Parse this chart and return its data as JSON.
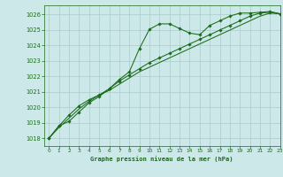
{
  "title": "Graphe pression niveau de la mer (hPa)",
  "bg_color": "#cce8e8",
  "grid_color": "#aacccc",
  "line_color": "#1a6b1a",
  "xlim": [
    -0.5,
    23
  ],
  "ylim": [
    1017.5,
    1026.6
  ],
  "yticks": [
    1018,
    1019,
    1020,
    1021,
    1022,
    1023,
    1024,
    1025,
    1026
  ],
  "xticks": [
    0,
    1,
    2,
    3,
    4,
    5,
    6,
    7,
    8,
    9,
    10,
    11,
    12,
    13,
    14,
    15,
    16,
    17,
    18,
    19,
    20,
    21,
    22,
    23
  ],
  "line1_x": [
    0,
    1,
    2,
    3,
    4,
    5,
    6,
    7,
    8,
    9,
    10,
    11,
    12,
    13,
    14,
    15,
    16,
    17,
    18,
    19,
    20,
    21,
    22,
    23
  ],
  "line1_y": [
    1018.0,
    1018.8,
    1019.1,
    1019.7,
    1020.3,
    1020.7,
    1021.2,
    1021.8,
    1022.3,
    1023.8,
    1025.05,
    1025.4,
    1025.4,
    1025.1,
    1024.8,
    1024.7,
    1025.3,
    1025.6,
    1025.9,
    1026.1,
    1026.1,
    1026.15,
    1026.2,
    1026.05
  ],
  "line2_x": [
    0,
    1,
    2,
    3,
    4,
    5,
    6,
    7,
    8,
    9,
    10,
    11,
    12,
    13,
    14,
    15,
    16,
    17,
    18,
    19,
    20,
    21,
    22,
    23
  ],
  "line2_y": [
    1018.0,
    1018.8,
    1019.5,
    1020.1,
    1020.5,
    1020.8,
    1021.2,
    1021.7,
    1022.1,
    1022.5,
    1022.9,
    1023.2,
    1023.5,
    1023.8,
    1024.1,
    1024.4,
    1024.7,
    1025.0,
    1025.3,
    1025.6,
    1025.9,
    1026.1,
    1026.15,
    1026.05
  ],
  "line3_x": [
    0,
    1,
    2,
    3,
    4,
    5,
    6,
    7,
    8,
    9,
    10,
    11,
    12,
    13,
    14,
    15,
    16,
    17,
    18,
    19,
    20,
    21,
    22,
    23
  ],
  "line3_y": [
    1018.0,
    1018.7,
    1019.3,
    1019.9,
    1020.4,
    1020.8,
    1021.1,
    1021.5,
    1021.9,
    1022.3,
    1022.6,
    1022.9,
    1023.2,
    1023.5,
    1023.8,
    1024.1,
    1024.4,
    1024.7,
    1025.0,
    1025.3,
    1025.6,
    1025.9,
    1026.1,
    1026.05
  ]
}
